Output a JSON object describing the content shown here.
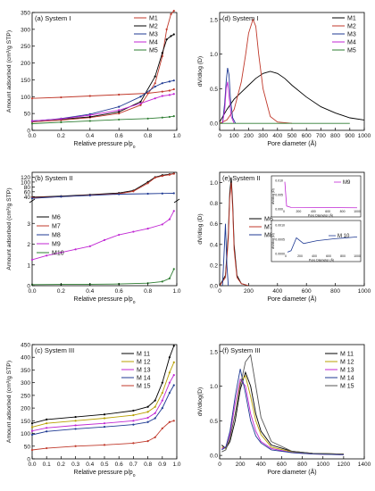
{
  "chart_data": [
    {
      "id": "a",
      "type": "line",
      "title": "(a) System I",
      "xlabel": "Relative pressure p/p",
      "xlabel_sub": "o",
      "ylabel": "Amount adsorbed (cm³/g STP)",
      "xlim": [
        0,
        1
      ],
      "ylim": [
        0,
        350
      ],
      "xticks": [
        "0.0",
        "0.2",
        "0.4",
        "0.6",
        "0.8",
        "1.0"
      ],
      "yticks": [
        "0",
        "50",
        "100",
        "150",
        "200",
        "250",
        "300",
        "350"
      ],
      "legend": [
        "M1",
        "M2",
        "M3",
        "M4",
        "M5"
      ],
      "series": [
        {
          "name": "M1",
          "color": "#c0392b",
          "x": [
            0.0,
            0.2,
            0.4,
            0.6,
            0.8,
            0.9,
            0.95,
            0.98
          ],
          "y": [
            95,
            98,
            102,
            106,
            110,
            115,
            118,
            122
          ]
        },
        {
          "name": "M1",
          "color": "#c0392b",
          "x": [
            0.0,
            0.2,
            0.4,
            0.6,
            0.75,
            0.85,
            0.9,
            0.93,
            0.96,
            0.98
          ],
          "y": [
            25,
            30,
            38,
            50,
            75,
            140,
            220,
            300,
            345,
            355
          ]
        },
        {
          "name": "M2",
          "color": "#000000",
          "x": [
            0.0,
            0.2,
            0.4,
            0.6,
            0.75,
            0.85,
            0.9,
            0.93,
            0.96,
            0.98
          ],
          "y": [
            28,
            33,
            40,
            55,
            85,
            160,
            230,
            270,
            280,
            285
          ]
        },
        {
          "name": "M3",
          "color": "#1f3a93",
          "x": [
            0.0,
            0.2,
            0.4,
            0.6,
            0.75,
            0.85,
            0.9,
            0.95,
            0.98
          ],
          "y": [
            27,
            35,
            48,
            70,
            100,
            130,
            140,
            145,
            148
          ]
        },
        {
          "name": "M4",
          "color": "#c026d3",
          "x": [
            0.0,
            0.2,
            0.4,
            0.6,
            0.75,
            0.85,
            0.9,
            0.95,
            0.98
          ],
          "y": [
            28,
            34,
            45,
            60,
            80,
            95,
            102,
            105,
            108
          ]
        },
        {
          "name": "M5",
          "color": "#2e7d32",
          "x": [
            0.0,
            0.2,
            0.4,
            0.6,
            0.8,
            0.9,
            0.95,
            0.98
          ],
          "y": [
            20,
            24,
            28,
            32,
            35,
            38,
            40,
            42
          ]
        }
      ]
    },
    {
      "id": "d",
      "type": "line",
      "title": "(d) System I",
      "xlabel": "Pore diameter (Å)",
      "ylabel": "dV/dlog (D)",
      "xlim": [
        0,
        1000
      ],
      "ylim": [
        -0.1,
        1.6
      ],
      "xticks": [
        "0",
        "100",
        "200",
        "300",
        "400",
        "500",
        "600",
        "700",
        "800",
        "900",
        "1000"
      ],
      "yticks": [
        "0.0",
        "0.5",
        "1.0",
        "1.5"
      ],
      "legend": [
        "M1",
        "M2",
        "M3",
        "M4",
        "M5"
      ],
      "series": [
        {
          "name": "M1",
          "color": "#000000",
          "x": [
            0,
            50,
            100,
            150,
            200,
            250,
            300,
            350,
            400,
            450,
            500,
            600,
            700,
            800,
            900,
            1000
          ],
          "y": [
            0.02,
            0.2,
            0.35,
            0.45,
            0.55,
            0.65,
            0.72,
            0.75,
            0.72,
            0.65,
            0.55,
            0.38,
            0.24,
            0.15,
            0.08,
            0.05
          ]
        },
        {
          "name": "M2",
          "color": "#c0392b",
          "x": [
            0,
            50,
            100,
            150,
            180,
            200,
            230,
            250,
            270,
            300,
            350,
            400,
            500
          ],
          "y": [
            0.0,
            0.05,
            0.2,
            0.6,
            1.0,
            1.3,
            1.5,
            1.4,
            1.0,
            0.5,
            0.1,
            0.02,
            0.0
          ]
        },
        {
          "name": "M3",
          "color": "#1f3a93",
          "x": [
            20,
            35,
            45,
            55,
            65,
            75,
            90,
            110
          ],
          "y": [
            0.0,
            0.3,
            0.6,
            0.8,
            0.7,
            0.35,
            0.08,
            0.0
          ]
        },
        {
          "name": "M4",
          "color": "#c026d3",
          "x": [
            20,
            35,
            45,
            55,
            65,
            80,
            100
          ],
          "y": [
            0.0,
            0.2,
            0.5,
            0.6,
            0.4,
            0.1,
            0.0
          ]
        },
        {
          "name": "M5",
          "color": "#2e7d32",
          "x": [
            0,
            100,
            200,
            300,
            400,
            500,
            600,
            700,
            800,
            900
          ],
          "y": [
            0.0,
            0.0,
            0.0,
            0.0,
            0.0,
            0.0,
            0.0,
            0.0,
            0.0,
            0.0
          ]
        }
      ]
    },
    {
      "id": "b",
      "type": "line",
      "title": "(b) System II",
      "xlabel": "Relative pressure p/p",
      "xlabel_sub": "o",
      "ylabel": "Amount adsorbed (cm³/g STP)",
      "xlim": [
        0,
        1
      ],
      "ylim_top": [
        30,
        140
      ],
      "ylim_bottom": [
        0,
        4
      ],
      "xticks": [
        "0.0",
        "0.2",
        "0.4",
        "0.6",
        "0.8",
        "1.0"
      ],
      "yticks_top": [
        "40",
        "60",
        "80",
        "100",
        "120"
      ],
      "yticks_bottom": [
        "0",
        "1",
        "2",
        "3"
      ],
      "legend": [
        "M6",
        "M7",
        "M8",
        "M9",
        "M10"
      ],
      "series_top": [
        {
          "name": "M6",
          "color": "#000000",
          "x": [
            0.0,
            0.2,
            0.4,
            0.6,
            0.7,
            0.8,
            0.85,
            0.9,
            0.95,
            0.98
          ],
          "y": [
            38,
            42,
            48,
            55,
            65,
            100,
            120,
            128,
            132,
            135
          ]
        },
        {
          "name": "M7",
          "color": "#c0392b",
          "x": [
            0.0,
            0.2,
            0.4,
            0.6,
            0.7,
            0.8,
            0.85,
            0.9,
            0.95,
            0.98
          ],
          "y": [
            36,
            40,
            46,
            52,
            62,
            95,
            118,
            125,
            130,
            134
          ]
        },
        {
          "name": "M8",
          "color": "#1f3a93",
          "x": [
            0.0,
            0.2,
            0.4,
            0.6,
            0.8,
            0.9,
            0.98
          ],
          "y": [
            33,
            40,
            45,
            50,
            52,
            53,
            54
          ]
        }
      ],
      "series_bottom": [
        {
          "name": "M9",
          "color": "#c026d3",
          "x": [
            0.0,
            0.1,
            0.2,
            0.3,
            0.4,
            0.5,
            0.6,
            0.7,
            0.8,
            0.9,
            0.95,
            0.98
          ],
          "y": [
            1.25,
            1.45,
            1.6,
            1.75,
            1.9,
            2.2,
            2.45,
            2.6,
            2.75,
            2.95,
            3.2,
            3.6
          ]
        },
        {
          "name": "M10",
          "color": "#2e7d32",
          "x": [
            0.0,
            0.2,
            0.4,
            0.6,
            0.8,
            0.9,
            0.95,
            0.98
          ],
          "y": [
            0.05,
            0.06,
            0.07,
            0.08,
            0.12,
            0.2,
            0.35,
            0.8
          ]
        }
      ]
    },
    {
      "id": "e",
      "type": "line",
      "title": "(e) System II",
      "xlabel": "Pore diameter (Å)",
      "ylabel": "dV/dlog (D)",
      "xlim": [
        0,
        1000
      ],
      "ylim": [
        0,
        1.1
      ],
      "xticks": [
        "0",
        "200",
        "400",
        "600",
        "800",
        "1000"
      ],
      "yticks": [
        "0.0",
        "0.2",
        "0.4",
        "0.6",
        "0.8",
        "1.0"
      ],
      "legend": [
        "M6",
        "M7",
        "M8"
      ],
      "series": [
        {
          "name": "M6",
          "color": "#000000",
          "x": [
            0,
            40,
            60,
            70,
            80,
            90,
            100,
            120,
            150,
            200
          ],
          "y": [
            0.0,
            0.1,
            0.5,
            0.9,
            1.05,
            0.8,
            0.4,
            0.1,
            0.02,
            0.0
          ]
        },
        {
          "name": "M7",
          "color": "#c0392b",
          "x": [
            0,
            40,
            60,
            70,
            80,
            90,
            100,
            120,
            150,
            200
          ],
          "y": [
            0.0,
            0.08,
            0.45,
            0.85,
            1.0,
            0.75,
            0.35,
            0.08,
            0.02,
            0.0
          ]
        },
        {
          "name": "M8",
          "color": "#1f3a93",
          "x": [
            20,
            30,
            40,
            50,
            60
          ],
          "y": [
            0.0,
            0.3,
            0.6,
            0.2,
            0.0
          ]
        }
      ],
      "inset_top": {
        "legend": "M9",
        "ylabel": "dV/dlog (D)",
        "xlabel": "Pore Diameter (Å)",
        "yticks": [
          "0.000",
          "0.005",
          "0.010"
        ],
        "xticks": [
          "0",
          "200",
          "400",
          "600",
          "800",
          "1000"
        ]
      },
      "inset_bottom": {
        "legend": "M 10",
        "ylabel": "dV/dlog (D)",
        "xlabel": "Pore Diameter (Å)",
        "yticks": [
          "0.0000",
          "0.0005",
          "0.0010"
        ],
        "xticks": [
          "0",
          "200",
          "400",
          "600",
          "800",
          "1000"
        ]
      }
    },
    {
      "id": "c",
      "type": "line",
      "title": "(c) System III",
      "xlabel": "Relative pressure p/p",
      "xlabel_sub": "o",
      "ylabel": "Amount adsorbed (cm³/g STP)",
      "xlim": [
        0,
        1
      ],
      "ylim": [
        0,
        450
      ],
      "xticks": [
        "0.0",
        "0.1",
        "0.2",
        "0.3",
        "0.4",
        "0.5",
        "0.6",
        "0.7",
        "0.8",
        "0.9",
        "1.0"
      ],
      "yticks": [
        "0",
        "50",
        "100",
        "150",
        "200",
        "250",
        "300",
        "350",
        "400",
        "450"
      ],
      "legend": [
        "M 11",
        "M 12",
        "M 13",
        "M 14",
        "M 15"
      ],
      "series": [
        {
          "name": "M 11",
          "color": "#000000",
          "x": [
            0.0,
            0.1,
            0.3,
            0.5,
            0.7,
            0.8,
            0.85,
            0.9,
            0.95,
            0.98
          ],
          "y": [
            140,
            155,
            165,
            175,
            190,
            205,
            230,
            300,
            400,
            445
          ]
        },
        {
          "name": "M 12",
          "color": "#b8a000",
          "x": [
            0.0,
            0.1,
            0.3,
            0.5,
            0.7,
            0.8,
            0.85,
            0.9,
            0.95,
            0.98
          ],
          "y": [
            125,
            140,
            150,
            160,
            172,
            185,
            205,
            260,
            340,
            380
          ]
        },
        {
          "name": "M 13",
          "color": "#c026d3",
          "x": [
            0.0,
            0.1,
            0.3,
            0.5,
            0.7,
            0.8,
            0.85,
            0.9,
            0.95,
            0.98
          ],
          "y": [
            110,
            122,
            132,
            140,
            150,
            162,
            180,
            230,
            300,
            330
          ]
        },
        {
          "name": "M 14",
          "color": "#1f3a93",
          "x": [
            0.0,
            0.1,
            0.3,
            0.5,
            0.7,
            0.8,
            0.85,
            0.9,
            0.95,
            0.98
          ],
          "y": [
            95,
            108,
            118,
            126,
            135,
            145,
            160,
            200,
            260,
            290
          ]
        },
        {
          "name": "M 15",
          "color": "#c0392b",
          "x": [
            0.0,
            0.1,
            0.3,
            0.5,
            0.7,
            0.8,
            0.85,
            0.9,
            0.95,
            0.98
          ],
          "y": [
            35,
            42,
            50,
            55,
            62,
            70,
            85,
            120,
            145,
            150
          ]
        }
      ]
    },
    {
      "id": "f",
      "type": "line",
      "title": "(f) System III",
      "xlabel": "Pore diameter (Å)",
      "ylabel": "dV/dlog(D)",
      "xlim": [
        0,
        1400
      ],
      "ylim": [
        -0.05,
        1.6
      ],
      "xticks": [
        "0",
        "200",
        "400",
        "600",
        "800",
        "1000",
        "1200",
        "1400"
      ],
      "yticks": [
        "0.0",
        "0.5",
        "1.0",
        "1.5"
      ],
      "legend": [
        "M 11",
        "M 12",
        "M 13",
        "M 14",
        "M 15"
      ],
      "series": [
        {
          "name": "M 11",
          "color": "#000000",
          "x": [
            20,
            60,
            100,
            150,
            200,
            250,
            300,
            350,
            400,
            500,
            700,
            900,
            1200
          ],
          "y": [
            0.15,
            0.1,
            0.2,
            0.5,
            0.95,
            1.2,
            1.0,
            0.6,
            0.35,
            0.15,
            0.06,
            0.03,
            0.02
          ]
        },
        {
          "name": "M 12",
          "color": "#b8a000",
          "x": [
            20,
            60,
            100,
            150,
            200,
            250,
            300,
            350,
            400,
            500,
            700,
            900,
            1200
          ],
          "y": [
            0.12,
            0.1,
            0.25,
            0.6,
            1.05,
            1.15,
            0.85,
            0.5,
            0.3,
            0.12,
            0.05,
            0.03,
            0.02
          ]
        },
        {
          "name": "M 13",
          "color": "#c026d3",
          "x": [
            20,
            60,
            100,
            150,
            200,
            250,
            300,
            350,
            400,
            500,
            700,
            900,
            1200
          ],
          "y": [
            0.1,
            0.12,
            0.3,
            0.75,
            1.1,
            1.0,
            0.6,
            0.35,
            0.2,
            0.1,
            0.04,
            0.02,
            0.01
          ]
        },
        {
          "name": "M 14",
          "color": "#1f3a93",
          "x": [
            20,
            60,
            100,
            150,
            200,
            250,
            300,
            350,
            400,
            500,
            700,
            900,
            1200
          ],
          "y": [
            0.08,
            0.12,
            0.35,
            0.85,
            1.25,
            0.9,
            0.5,
            0.28,
            0.18,
            0.08,
            0.04,
            0.02,
            0.01
          ]
        },
        {
          "name": "M 15",
          "color": "#555555",
          "x": [
            20,
            60,
            100,
            150,
            200,
            250,
            300,
            350,
            400,
            500,
            700,
            900,
            1200
          ],
          "y": [
            0.05,
            0.08,
            0.25,
            0.6,
            1.0,
            1.35,
            1.45,
            1.0,
            0.55,
            0.2,
            0.06,
            0.03,
            0.02
          ]
        }
      ]
    }
  ]
}
